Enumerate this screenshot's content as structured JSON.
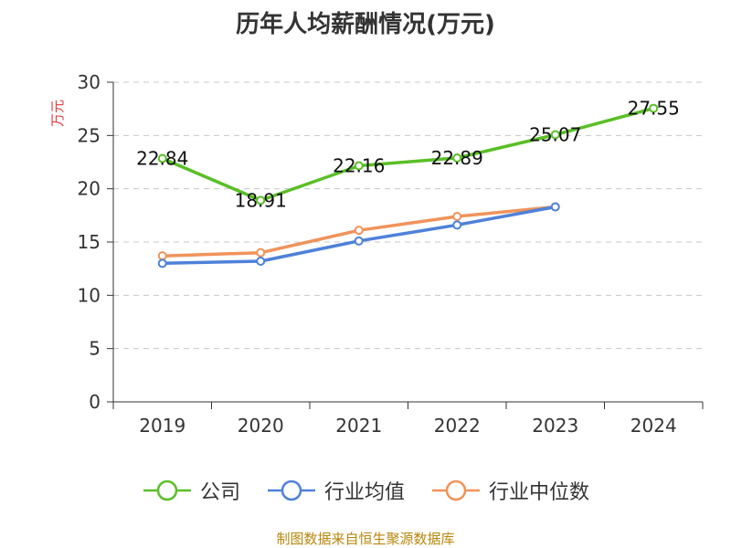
{
  "chart_data": {
    "type": "line",
    "title": "历年人均薪酬情况(万元)",
    "ylabel": "万元",
    "xlabel": "",
    "categories": [
      "2019",
      "2020",
      "2021",
      "2022",
      "2023",
      "2024"
    ],
    "ylim": [
      0,
      30
    ],
    "yticks": [
      0,
      5,
      10,
      15,
      20,
      25,
      30
    ],
    "grid": true,
    "legend_position": "bottom",
    "series": [
      {
        "name": "公司",
        "color": "#5abf27",
        "values": [
          22.84,
          18.91,
          22.16,
          22.89,
          25.07,
          27.55
        ],
        "labels": [
          "22.84",
          "18.91",
          "22.16",
          "22.89",
          "25.07",
          "27.55"
        ]
      },
      {
        "name": "行业均值",
        "color": "#4f81d9",
        "values": [
          13.0,
          13.2,
          15.1,
          16.6,
          18.3,
          null
        ]
      },
      {
        "name": "行业中位数",
        "color": "#f0935a",
        "values": [
          13.7,
          14.0,
          16.1,
          17.4,
          18.3,
          null
        ]
      }
    ]
  },
  "source_text": "制图数据来自恒生聚源数据库"
}
